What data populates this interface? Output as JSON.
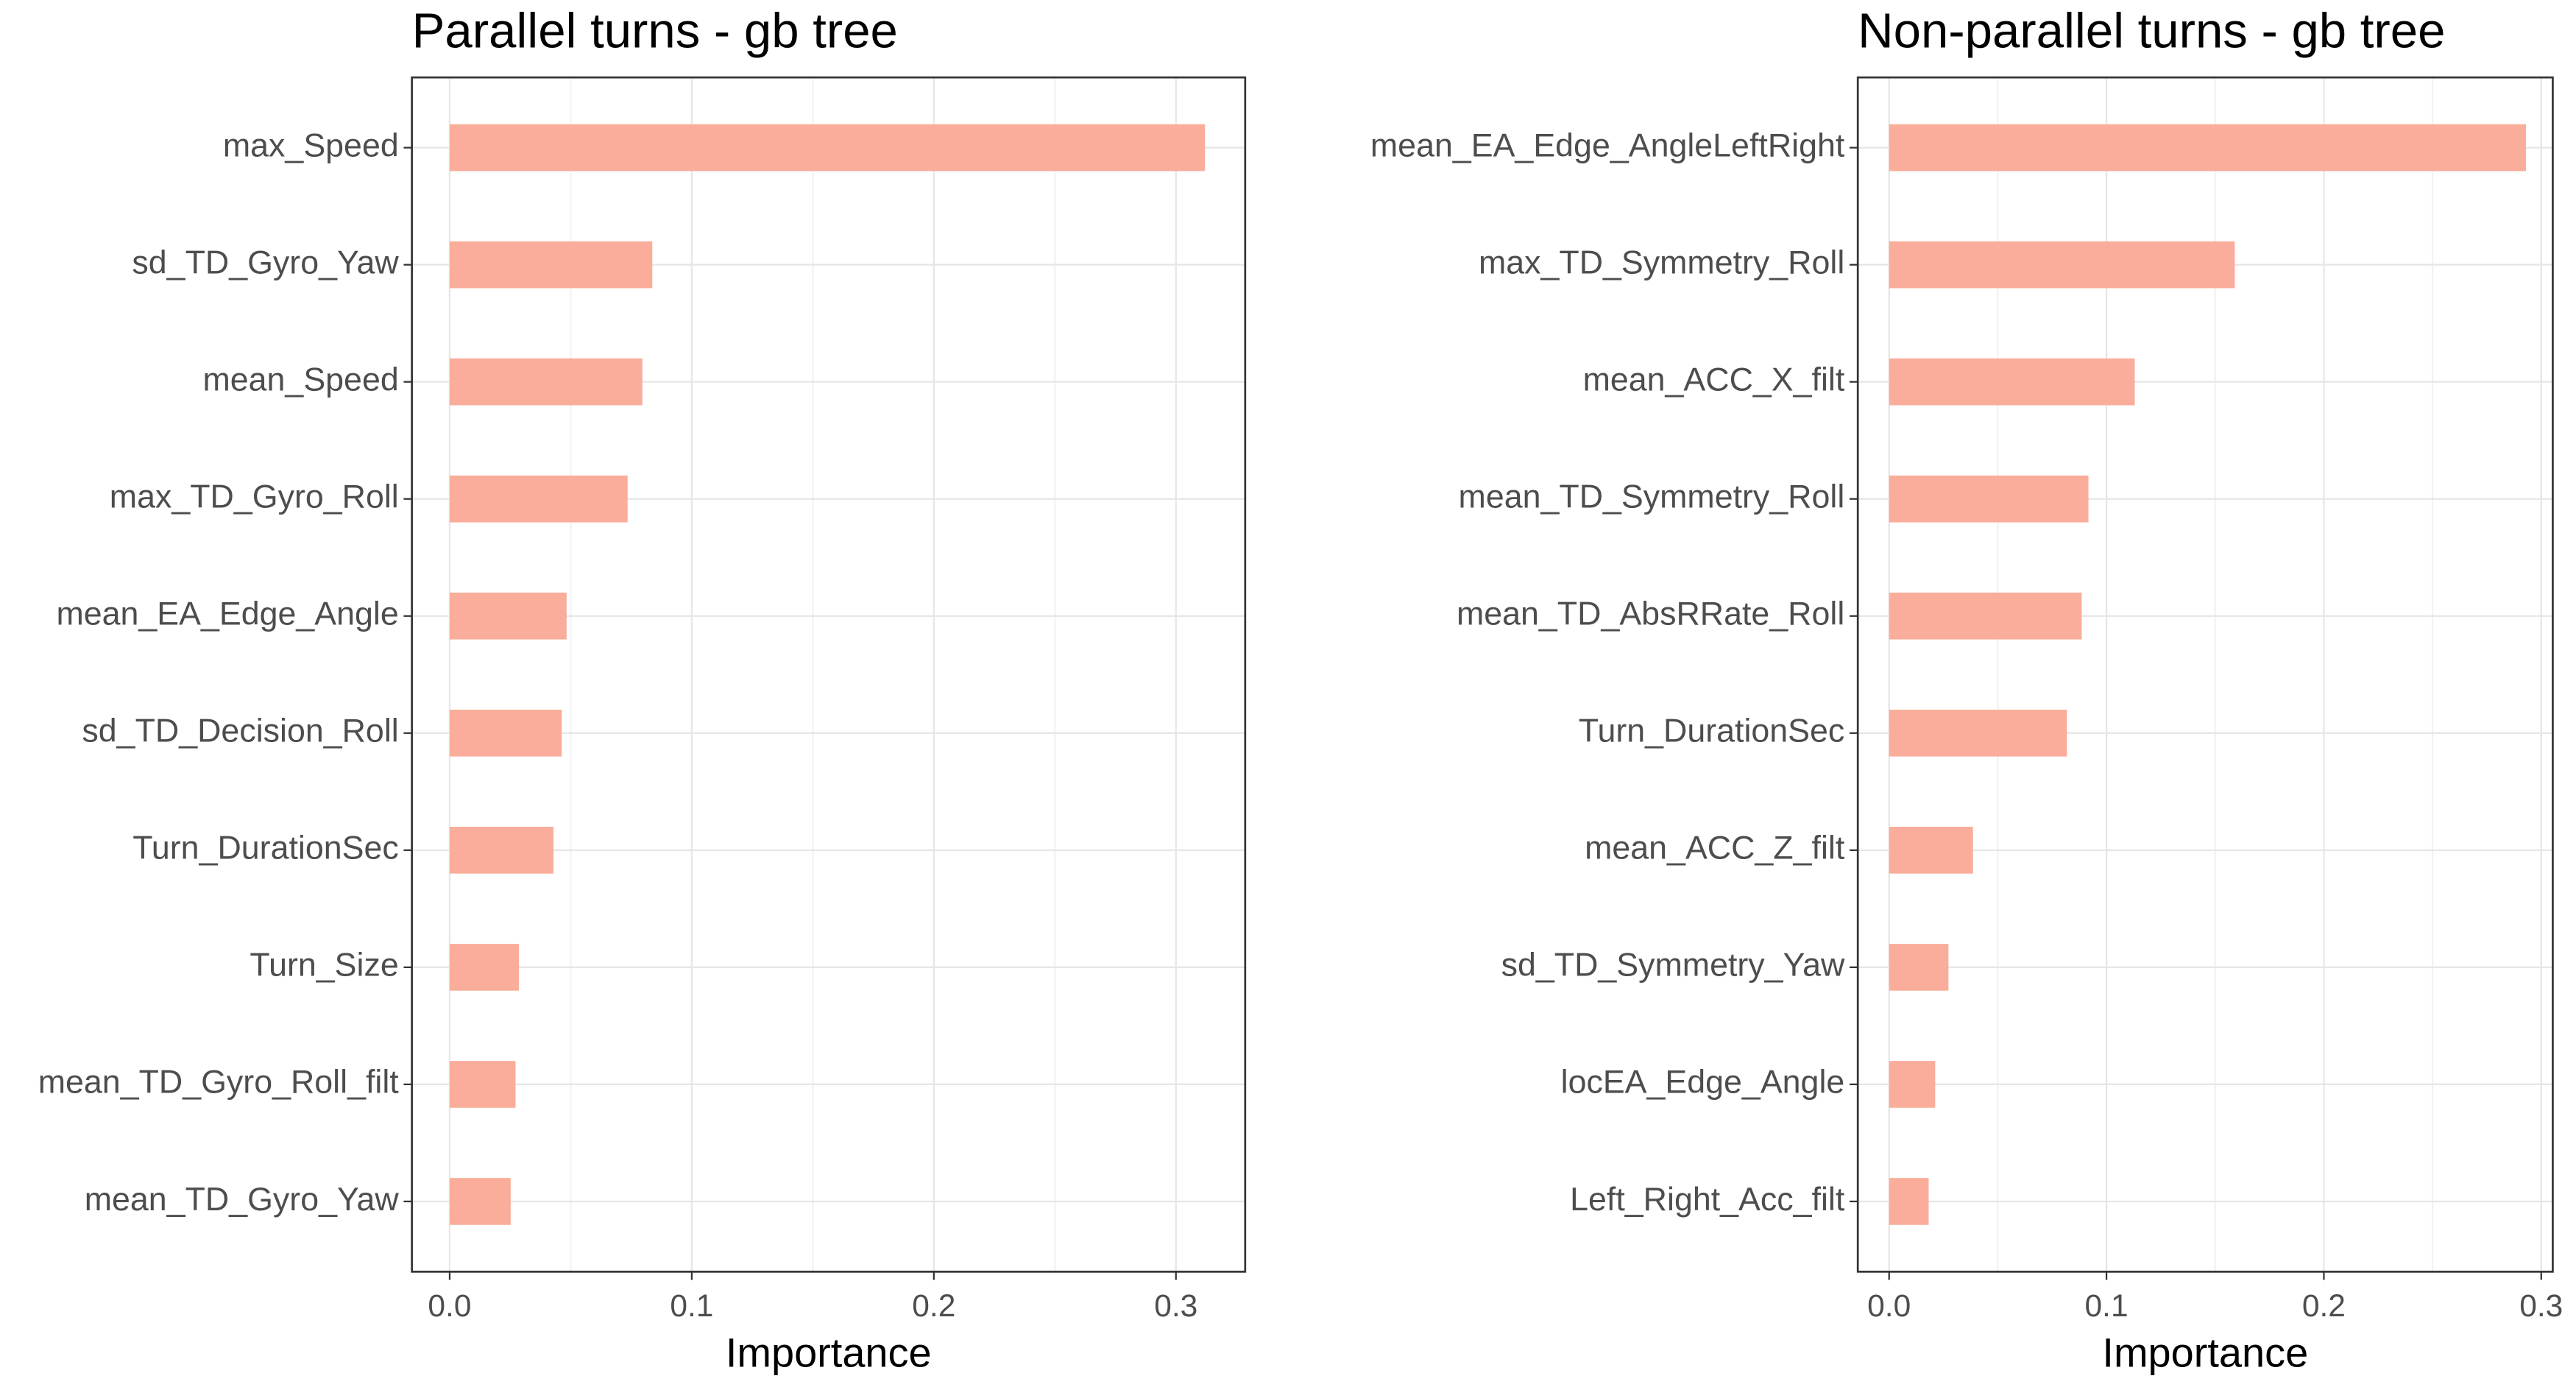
{
  "chart_data": [
    {
      "type": "bar",
      "orientation": "horizontal",
      "title": "Parallel turns - gb tree",
      "x_label": "Importance",
      "categories": [
        "max_Speed",
        "sd_TD_Gyro_Yaw",
        "mean_Speed",
        "max_TD_Gyro_Roll",
        "mean_EA_Edge_Angle",
        "sd_TD_Decision_Roll",
        "Turn_DurationSec",
        "Turn_Size",
        "mean_TD_Gyro_Roll_filt",
        "mean_TD_Gyro_Yaw"
      ],
      "values": [
        0.312,
        0.0837,
        0.0796,
        0.0735,
        0.0483,
        0.0463,
        0.0429,
        0.0286,
        0.0272,
        0.0252
      ],
      "color": "#f9ad9a",
      "xlim": [
        -0.0156,
        0.3286
      ],
      "xticks": [
        {
          "value": 0,
          "label": "0.0"
        },
        0.1,
        0.2,
        0.3
      ],
      "grid": true,
      "minor_grid": true
    },
    {
      "type": "bar",
      "orientation": "horizontal",
      "title": "Non-parallel turns - gb tree",
      "x_label": "Importance",
      "categories": [
        "mean_EA_Edge_AngleLeftRight",
        "max_TD_Symmetry_Roll",
        "mean_ACC_X_filt",
        "mean_TD_Symmetry_Roll",
        "mean_TD_AbsRRate_Roll",
        "Turn_DurationSec",
        "mean_ACC_Z_filt",
        "sd_TD_Symmetry_Yaw",
        "locEA_Edge_Angle",
        "Left_Right_Acc_filt"
      ],
      "values": [
        0.293,
        0.159,
        0.113,
        0.0917,
        0.0886,
        0.0818,
        0.0386,
        0.0273,
        0.0212,
        0.0182
      ],
      "color": "#f9ad9a",
      "xlim": [
        -0.0144,
        0.3053
      ],
      "xticks": [
        {
          "value": 0,
          "label": "0.0"
        },
        0.1,
        0.2,
        0.3
      ],
      "grid": true,
      "minor_grid": true
    }
  ]
}
